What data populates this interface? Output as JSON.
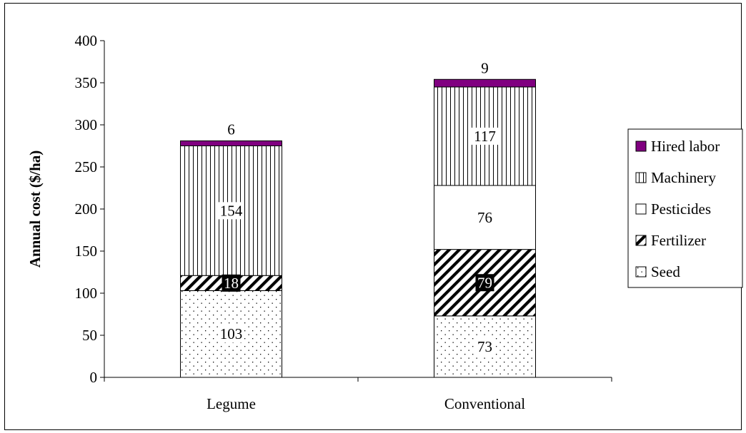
{
  "chart_data": {
    "type": "bar",
    "stacked": true,
    "title": "",
    "xlabel": "",
    "ylabel": "Annual cost ($/ha)",
    "ylim": [
      0,
      400
    ],
    "yticks": [
      0,
      50,
      100,
      150,
      200,
      250,
      300,
      350,
      400
    ],
    "grid": false,
    "legend_position": "right",
    "categories": [
      "Legume",
      "Conventional"
    ],
    "series": [
      {
        "name": "Seed",
        "values": [
          103,
          73
        ],
        "fill": "dots",
        "color": "#ffffff",
        "labels": [
          "103",
          "73"
        ],
        "label_style": "white-box"
      },
      {
        "name": "Fertilizer",
        "values": [
          18,
          79
        ],
        "fill": "diagonal-hatch",
        "color": "#ffffff",
        "labels": [
          "18",
          "79"
        ],
        "label_style": "black-box"
      },
      {
        "name": "Pesticides",
        "values": [
          0,
          76
        ],
        "fill": "solid",
        "color": "#ffffff",
        "labels": [
          "",
          "76"
        ],
        "label_style": "white-box"
      },
      {
        "name": "Machinery",
        "values": [
          154,
          117
        ],
        "fill": "vertical-hatch",
        "color": "#ffffff",
        "labels": [
          "154",
          "117"
        ],
        "label_style": "white-box"
      },
      {
        "name": "Hired labor",
        "values": [
          6,
          9
        ],
        "fill": "solid",
        "color": "#800080",
        "labels": [
          "6",
          "9"
        ],
        "label_style": "above"
      }
    ]
  }
}
